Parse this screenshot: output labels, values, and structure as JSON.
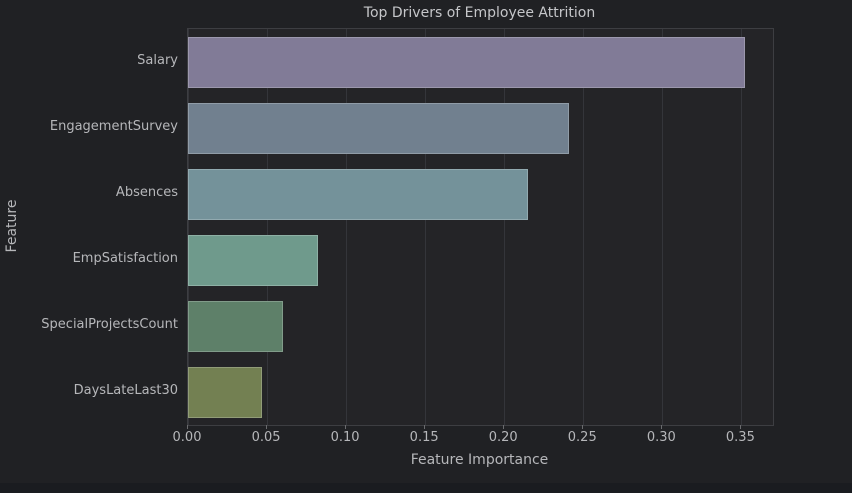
{
  "chart_data": {
    "type": "bar",
    "orientation": "horizontal",
    "title": "Top Drivers of Employee Attrition",
    "xlabel": "Feature Importance",
    "ylabel": "Feature",
    "categories": [
      "Salary",
      "EngagementSurvey",
      "Absences",
      "EmpSatisfaction",
      "SpecialProjectsCount",
      "DaysLateLast30"
    ],
    "values": [
      0.352,
      0.241,
      0.215,
      0.082,
      0.06,
      0.047
    ],
    "bar_colors": [
      "#817b97",
      "#71808f",
      "#74929a",
      "#6f9a8c",
      "#5e8069",
      "#738052"
    ],
    "xlim": [
      0,
      0.37
    ],
    "xticks": [
      0,
      0.05,
      0.1,
      0.15,
      0.2,
      0.25,
      0.3,
      0.35
    ],
    "xtick_labels": [
      "0.00",
      "0.05",
      "0.10",
      "0.15",
      "0.20",
      "0.25",
      "0.30",
      "0.35"
    ],
    "grid": "vertical-gridlines-on",
    "legend": "none"
  },
  "colors": {
    "figure_bg": "#202124",
    "plot_bg": "#242427",
    "page_bg": "#1a1c20",
    "grid": "#34353a",
    "spine": "#3d3e42",
    "text": "#b6b7ba",
    "title_text": "#c5c6c9"
  }
}
